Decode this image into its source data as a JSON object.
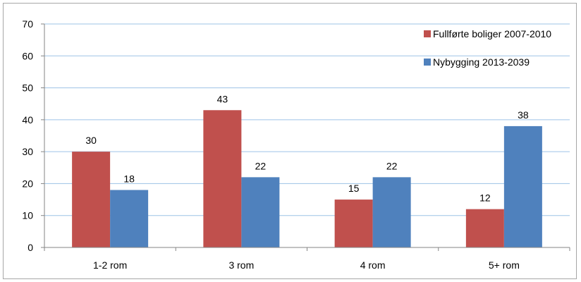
{
  "chart_data": {
    "type": "bar",
    "title": "",
    "xlabel": "",
    "ylabel": "",
    "ylim": [
      0,
      70
    ],
    "yticks": [
      0,
      10,
      20,
      30,
      40,
      50,
      60,
      70
    ],
    "categories": [
      "1-2 rom",
      "3 rom",
      "4 rom",
      "5+ rom"
    ],
    "series": [
      {
        "name": "Fullførte boliger 2007-2010",
        "color": "#c0504d",
        "values": [
          30,
          43,
          15,
          12
        ]
      },
      {
        "name": "Nybygging 2013-2039",
        "color": "#4f81bd",
        "values": [
          18,
          22,
          22,
          38
        ]
      }
    ],
    "grid": true,
    "legend_position": "top-right",
    "data_labels": true
  }
}
